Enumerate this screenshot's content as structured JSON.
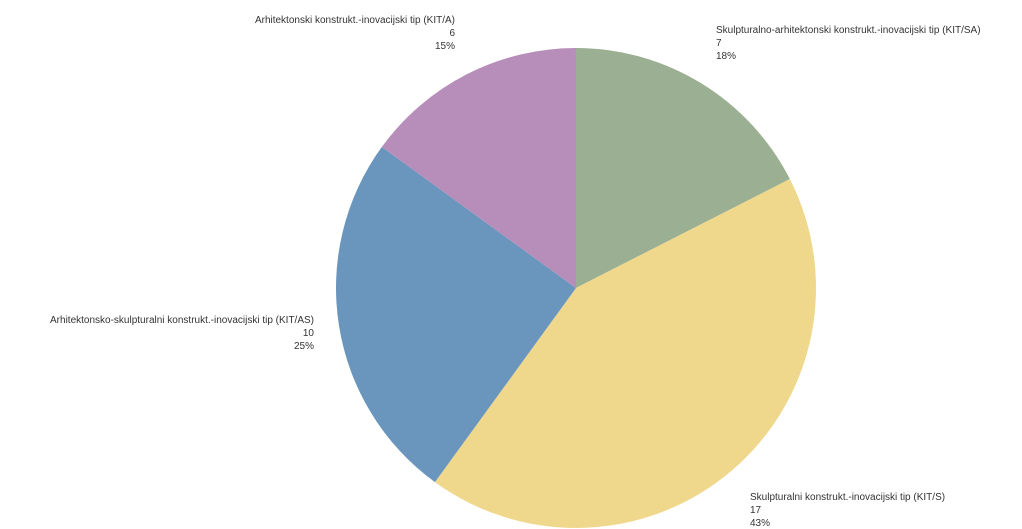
{
  "chart_data": {
    "type": "pie",
    "title": "",
    "legend": "none",
    "slices": [
      {
        "label": "Skulpturalno-arhitektonski konstrukt.-inovacijski tip (KIT/SA)",
        "value": 7,
        "percent": "18%",
        "color": "#9bb093"
      },
      {
        "label": "Skulpturalni konstrukt.-inovacijski tip (KIT/S)",
        "value": 17,
        "percent": "43%",
        "color": "#efd88c"
      },
      {
        "label": "Arhitektonsko-skulpturalni konstrukt.-inovacijski tip (KIT/AS)",
        "value": 10,
        "percent": "25%",
        "color": "#6a96bd"
      },
      {
        "label": "Arhitektonski konstrukt.-inovacijski tip (KIT/A)",
        "value": 6,
        "percent": "15%",
        "color": "#b68eb9"
      }
    ]
  }
}
